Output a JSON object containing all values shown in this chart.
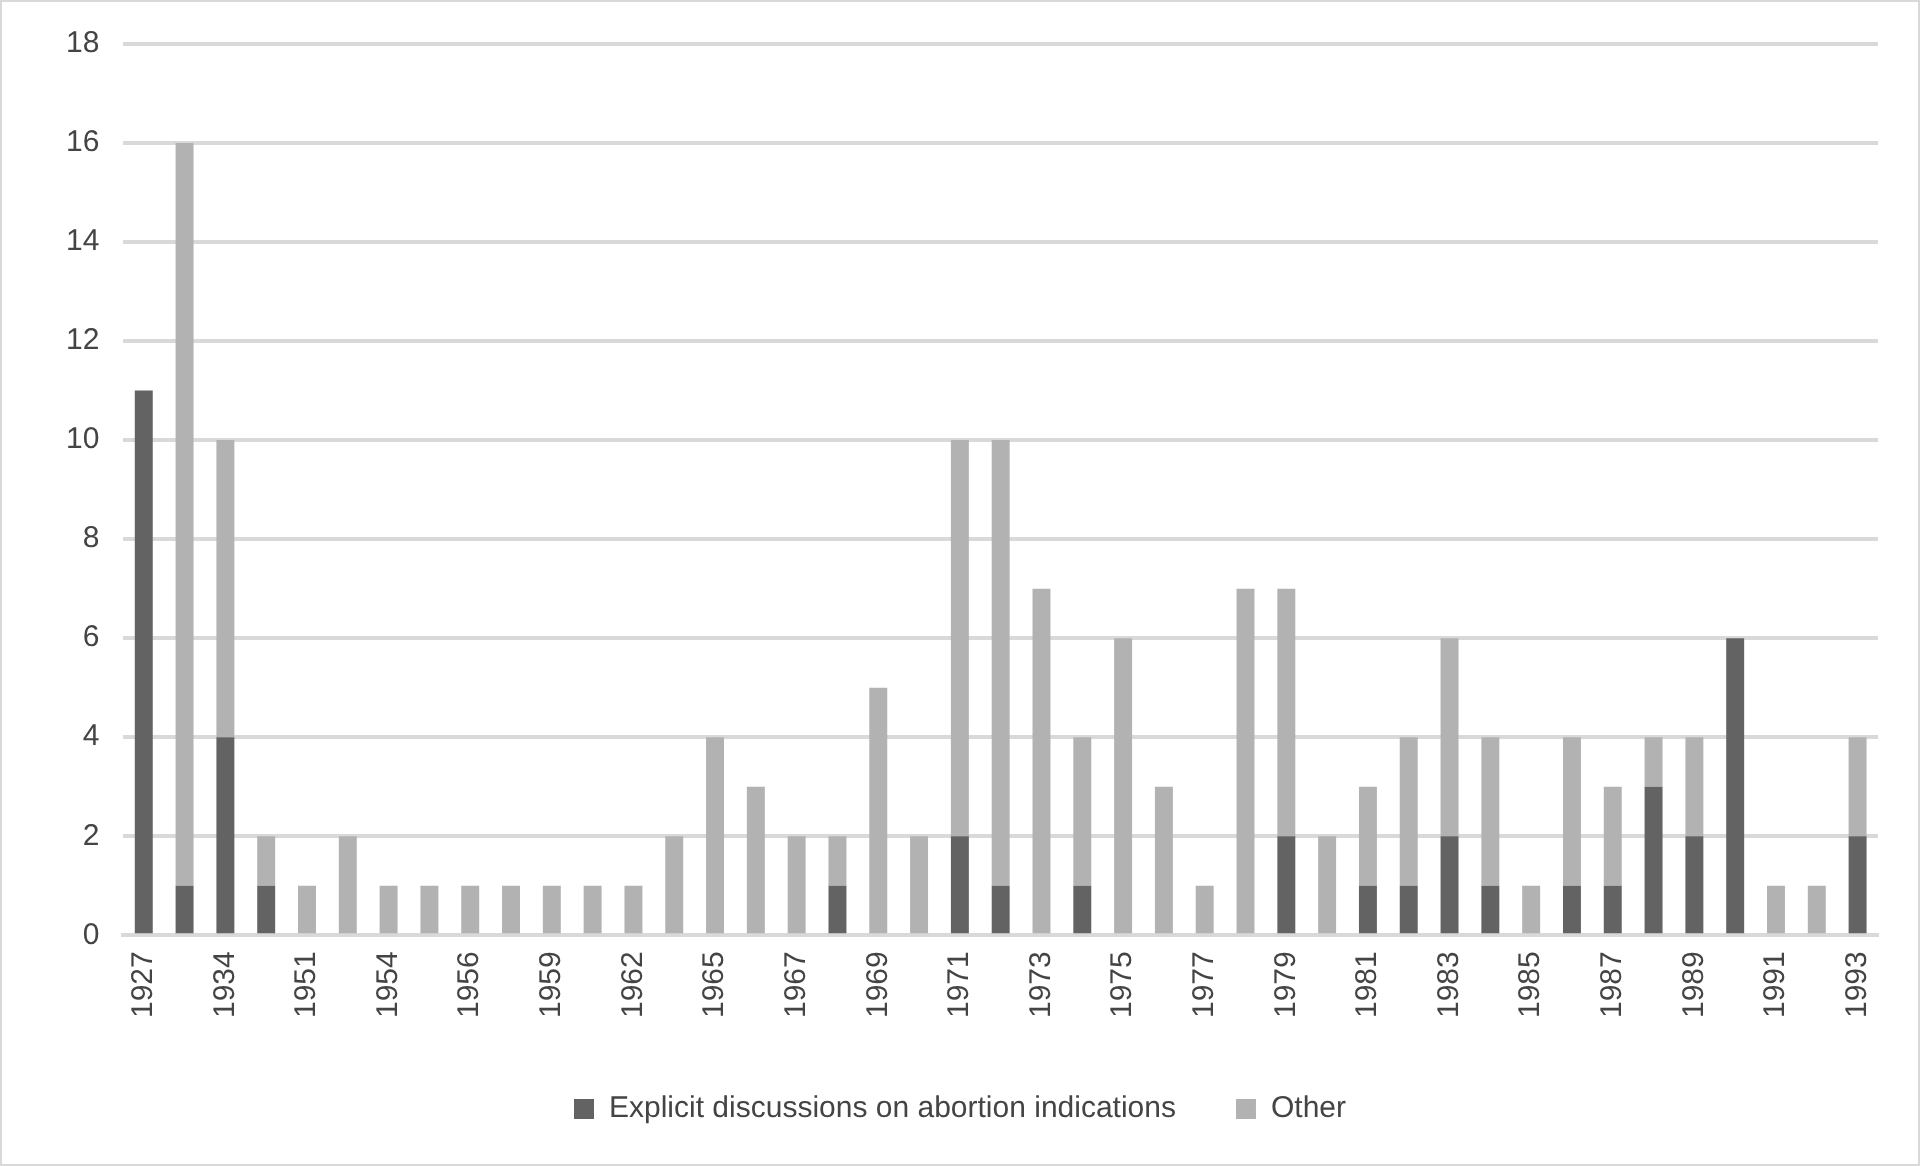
{
  "chart_data": {
    "type": "bar",
    "stacked": true,
    "categories": [
      "1927",
      null,
      "1934",
      null,
      "1951",
      null,
      "1954",
      null,
      "1956",
      null,
      "1959",
      null,
      "1962",
      null,
      "1965",
      null,
      "1967",
      null,
      "1969",
      null,
      "1971",
      null,
      "1973",
      null,
      "1975",
      null,
      "1977",
      null,
      "1979",
      null,
      "1981",
      null,
      "1983",
      null,
      "1985",
      null,
      "1987",
      null,
      "1989",
      null,
      "1991",
      null,
      "1993"
    ],
    "series": [
      {
        "name": "Explicit discussions on abortion indications",
        "color": "#636363",
        "values": [
          11,
          1,
          4,
          1,
          0,
          0,
          0,
          0,
          0,
          0,
          0,
          0,
          0,
          0,
          0,
          0,
          0,
          1,
          0,
          0,
          2,
          1,
          0,
          1,
          0,
          0,
          0,
          0,
          2,
          0,
          1,
          1,
          2,
          1,
          0,
          1,
          1,
          3,
          2,
          6,
          0,
          0,
          2
        ]
      },
      {
        "name": "Other",
        "color": "#b2b2b2",
        "values": [
          0,
          15,
          6,
          1,
          1,
          2,
          1,
          1,
          1,
          1,
          1,
          1,
          1,
          2,
          4,
          3,
          2,
          1,
          5,
          2,
          8,
          9,
          7,
          3,
          6,
          3,
          1,
          7,
          5,
          2,
          2,
          3,
          4,
          3,
          1,
          3,
          2,
          1,
          2,
          0,
          1,
          1,
          2
        ]
      }
    ],
    "ylim": [
      0,
      18
    ],
    "yticks": [
      0,
      2,
      4,
      6,
      8,
      10,
      12,
      14,
      16,
      18
    ],
    "grid": "y",
    "legend": "bottom"
  }
}
